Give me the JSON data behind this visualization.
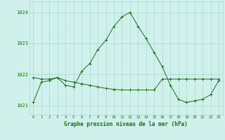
{
  "line1_x": [
    0,
    1,
    2,
    3,
    4,
    5,
    6,
    7,
    8,
    9,
    10,
    11,
    12,
    13,
    14,
    15,
    16,
    17,
    18,
    19,
    20,
    21,
    22,
    23
  ],
  "line1_y": [
    1021.1,
    1021.75,
    1021.8,
    1021.9,
    1021.65,
    1021.6,
    1022.1,
    1022.35,
    1022.8,
    1023.1,
    1023.55,
    1023.85,
    1024.0,
    1023.55,
    1023.15,
    1022.7,
    1022.25,
    1021.65,
    1021.2,
    1021.1,
    1021.15,
    1021.2,
    1021.35,
    1021.8
  ],
  "line2_x": [
    0,
    1,
    2,
    3,
    4,
    5,
    6,
    7,
    8,
    9,
    10,
    11,
    12,
    13,
    14,
    15,
    16,
    17,
    18,
    19,
    20,
    21,
    22,
    23
  ],
  "line2_y": [
    1021.9,
    1021.85,
    1021.85,
    1021.9,
    1021.8,
    1021.75,
    1021.7,
    1021.65,
    1021.6,
    1021.55,
    1021.52,
    1021.5,
    1021.5,
    1021.5,
    1021.5,
    1021.5,
    1021.85,
    1021.85,
    1021.85,
    1021.85,
    1021.85,
    1021.85,
    1021.85,
    1021.85
  ],
  "line_color": "#1a6e1a",
  "bg_color": "#cff0eb",
  "grid_color": "#a8d8d0",
  "xlabel": "Graphe pression niveau de la mer (hPa)",
  "ytick_labels": [
    "1021",
    "1022",
    "1023",
    "1024"
  ],
  "ytick_vals": [
    1021,
    1022,
    1023,
    1024
  ],
  "xtick_labels": [
    "0",
    "1",
    "2",
    "3",
    "4",
    "5",
    "6",
    "7",
    "8",
    "9",
    "10",
    "11",
    "12",
    "13",
    "14",
    "15",
    "16",
    "17",
    "18",
    "19",
    "20",
    "21",
    "22",
    "23"
  ],
  "xtick_vals": [
    0,
    1,
    2,
    3,
    4,
    5,
    6,
    7,
    8,
    9,
    10,
    11,
    12,
    13,
    14,
    15,
    16,
    17,
    18,
    19,
    20,
    21,
    22,
    23
  ],
  "ylim": [
    1020.7,
    1024.35
  ],
  "xlim": [
    -0.5,
    23.5
  ]
}
